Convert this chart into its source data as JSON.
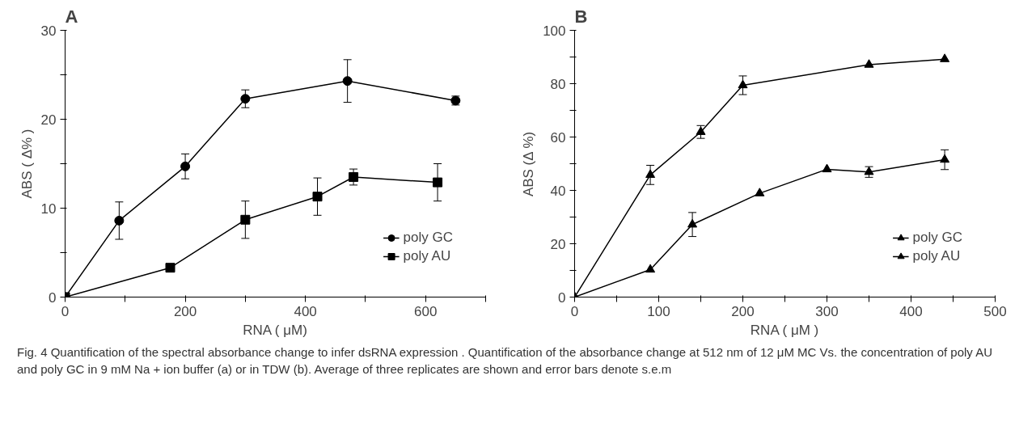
{
  "chart_data": [
    {
      "type": "line",
      "title": "A",
      "xlabel": "RNA ( μM)",
      "ylabel": "ABS ( Δ% )",
      "xlim": [
        0,
        700
      ],
      "ylim": [
        0,
        30
      ],
      "xticks": [
        0,
        {
          "value": 100,
          "label": null
        },
        200,
        {
          "value": 300,
          "label": null
        },
        400,
        {
          "value": 500,
          "label": null
        },
        600,
        {
          "value": 700,
          "label": null
        }
      ],
      "yticks": [
        0,
        {
          "value": 5,
          "label": null
        },
        10,
        {
          "value": 15,
          "label": null
        },
        20,
        {
          "value": 25,
          "label": null
        },
        30
      ],
      "grid": false,
      "legend": "bottom right",
      "series": [
        {
          "name": "poly GC",
          "color": "#000000",
          "marker": "circle",
          "x": [
            0,
            90,
            200,
            300,
            470,
            650
          ],
          "values": [
            0,
            8.6,
            14.7,
            22.3,
            24.3,
            22.1
          ],
          "errors": [
            null,
            2.1,
            1.4,
            1.0,
            2.4,
            0.5
          ]
        },
        {
          "name": "poly AU",
          "color": "#000000",
          "marker": "square",
          "x": [
            0,
            175,
            300,
            420,
            480,
            620
          ],
          "values": [
            0,
            3.3,
            8.7,
            11.3,
            13.5,
            12.9
          ],
          "errors": [
            null,
            0.4,
            2.1,
            2.1,
            0.9,
            2.1
          ]
        }
      ],
      "annotations": [
        "Fig. 4 Quantification of the spectral absorbance change to infer dsRNA expression . Quantification of the absorbance change at 512 nm of 12 μM MC Vs. the concentration of poly AU and poly GC in 9 mM Na + ion buffer (a) or in TDW (b). Average of three replicates are shown and error bars denote s.e.m"
      ]
    },
    {
      "type": "line",
      "title": "B",
      "xlabel": "RNA ( μM )",
      "ylabel": "ABS (Δ %)",
      "xlim": [
        0,
        500
      ],
      "ylim": [
        0,
        100
      ],
      "xticks": [
        0,
        {
          "value": 50,
          "label": null
        },
        100,
        {
          "value": 150,
          "label": null
        },
        200,
        {
          "value": 250,
          "label": null
        },
        300,
        {
          "value": 350,
          "label": null
        },
        400,
        {
          "value": 450,
          "label": null
        },
        500
      ],
      "yticks": [
        0,
        {
          "value": 10,
          "label": null
        },
        20,
        {
          "value": 30,
          "label": null
        },
        40,
        {
          "value": 50,
          "label": null
        },
        60,
        {
          "value": 70,
          "label": null
        },
        80,
        {
          "value": 90,
          "label": null
        },
        100
      ],
      "grid": false,
      "legend": "bottom right",
      "series": [
        {
          "name": "poly GC",
          "color": "#000000",
          "marker": "triangle",
          "x": [
            0,
            90,
            150,
            200,
            350,
            440
          ],
          "values": [
            0,
            45.8,
            61.9,
            79.4,
            87.1,
            89.2
          ],
          "errors": [
            null,
            3.6,
            2.4,
            3.5,
            null,
            null
          ]
        },
        {
          "name": "poly AU",
          "color": "#000000",
          "marker": "triangle",
          "x": [
            0,
            90,
            140,
            220,
            300,
            350,
            440
          ],
          "values": [
            0,
            10.3,
            27.2,
            38.9,
            47.9,
            46.9,
            51.5
          ],
          "errors": [
            null,
            null,
            4.5,
            null,
            null,
            2.0,
            3.7
          ]
        }
      ]
    }
  ]
}
